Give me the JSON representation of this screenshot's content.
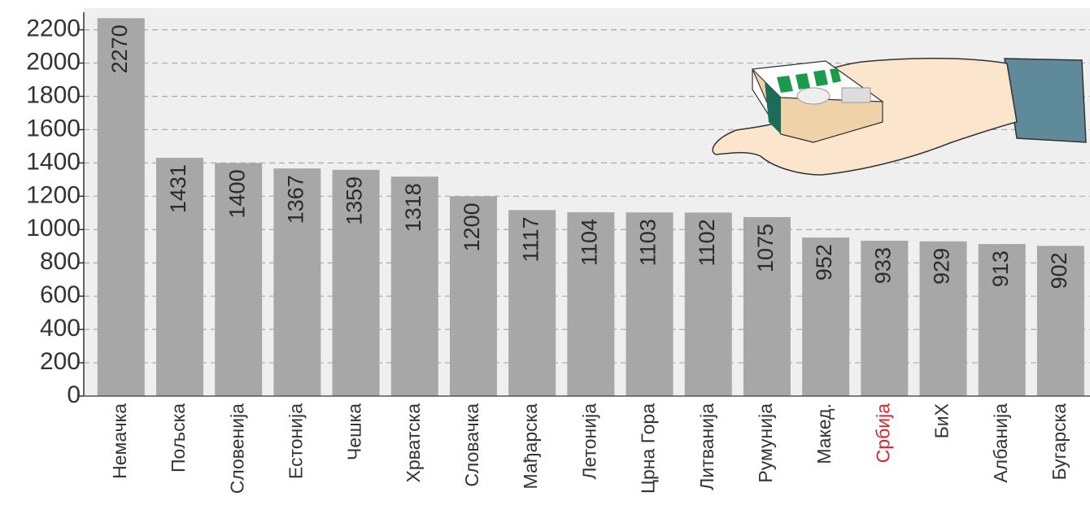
{
  "chart_data": {
    "type": "bar",
    "categories": [
      "Немачка",
      "Пољска",
      "Словенија",
      "Естонија",
      "Чешка",
      "Хрватска",
      "Словачка",
      "Мађарска",
      "Летонија",
      "Црна Гора",
      "Литванија",
      "Румунија",
      "Макед.",
      "Србија",
      "БиХ",
      "Албанија",
      "Бугарска"
    ],
    "values": [
      2270,
      1431,
      1400,
      1367,
      1359,
      1318,
      1200,
      1117,
      1104,
      1103,
      1102,
      1075,
      952,
      933,
      929,
      913,
      902
    ],
    "color": "#a7a7a7",
    "label_colors": [
      "#333333",
      "#333333",
      "#333333",
      "#333333",
      "#333333",
      "#333333",
      "#333333",
      "#333333",
      "#333333",
      "#333333",
      "#333333",
      "#333333",
      "#333333",
      "#d7262e",
      "#333333",
      "#333333",
      "#333333"
    ],
    "ylim": [
      0,
      2330
    ],
    "yticks": [
      0,
      200,
      400,
      600,
      800,
      1000,
      1200,
      1400,
      1600,
      1800,
      2000,
      2200
    ],
    "grid": true
  }
}
